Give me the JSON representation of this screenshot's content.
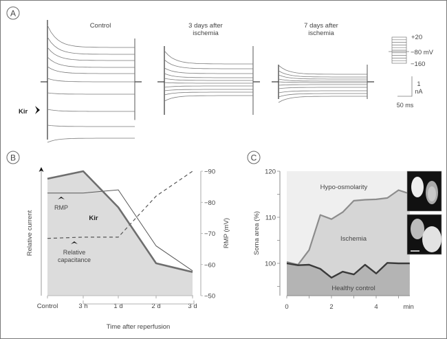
{
  "panelA": {
    "label": "A",
    "titles": {
      "control": "Control",
      "day3": [
        "3 days after",
        "ischemia"
      ],
      "day7": [
        "7 days after",
        "ischemia"
      ]
    },
    "kir_marker": "Kir",
    "voltage_protocol": {
      "top": "+20",
      "mid": "−80 mV",
      "bottom": "−160"
    },
    "scale_bar": {
      "current": [
        "1",
        "nA"
      ],
      "time": "50 ms"
    }
  },
  "panelB": {
    "label": "B",
    "left_axis_label": "Relative current",
    "right_axis_label": "RMP (mV)",
    "right_ticks": [
      "−90",
      "−80",
      "−70",
      "−60",
      "−50"
    ],
    "x_ticks": [
      "Control",
      "3 h",
      "1 d",
      "2 d",
      "3 d"
    ],
    "bracket_label": "Time after reperfusion",
    "annotations": {
      "rmp": "RMP",
      "kir": "Kir",
      "cap": [
        "Relative",
        "capacitance"
      ]
    }
  },
  "panelC": {
    "label": "C",
    "y_axis_label": "Soma area (%)",
    "y_ticks": [
      "120",
      "110",
      "100"
    ],
    "x_ticks": [
      "0",
      "2",
      "4",
      "min"
    ],
    "regions": {
      "hypo": "Hypo-osmolarity",
      "isch": "Ischemia",
      "healthy": "Healthy control"
    }
  },
  "chart_data": [
    {
      "type": "line",
      "title": "Panel B",
      "xlabel": "Time after reperfusion",
      "ylabel": "Relative current",
      "y2label": "RMP (mV)",
      "categories": [
        "Control",
        "3 h",
        "1 d",
        "2 d",
        "3 d"
      ],
      "y2lim": [
        -50,
        -90
      ],
      "series": [
        {
          "name": "Kir (relative current)",
          "style": "thick-filled",
          "values": [
            0.94,
            1.0,
            0.71,
            0.26,
            0.19
          ]
        },
        {
          "name": "RMP",
          "axis": "right",
          "style": "thin",
          "values": [
            -83,
            -83,
            -84,
            -66,
            -58
          ]
        },
        {
          "name": "Relative capacitance",
          "style": "dashed",
          "values": [
            0.46,
            0.47,
            0.47,
            0.8,
            1.0
          ]
        }
      ]
    },
    {
      "type": "area",
      "title": "Panel C",
      "xlabel": "min",
      "ylabel": "Soma area (%)",
      "ylim": [
        93,
        120
      ],
      "xlim": [
        0,
        5.5
      ],
      "series": [
        {
          "name": "Ischemia",
          "x": [
            0,
            0.5,
            1,
            1.5,
            2,
            2.5,
            3,
            3.5,
            4,
            4.5,
            5,
            5.5
          ],
          "values": [
            100.3,
            99.7,
            102.9,
            110.5,
            109.6,
            111.1,
            113.6,
            113.8,
            113.9,
            114.2,
            115.9,
            115.1
          ]
        },
        {
          "name": "Healthy control",
          "x": [
            0,
            0.5,
            1,
            1.5,
            2,
            2.5,
            3,
            3.5,
            4,
            4.5,
            5,
            5.5
          ],
          "values": [
            100,
            99.6,
            99.7,
            98.8,
            96.9,
            98.2,
            97.6,
            99.7,
            97.8,
            100.1,
            100,
            100
          ]
        }
      ]
    }
  ]
}
